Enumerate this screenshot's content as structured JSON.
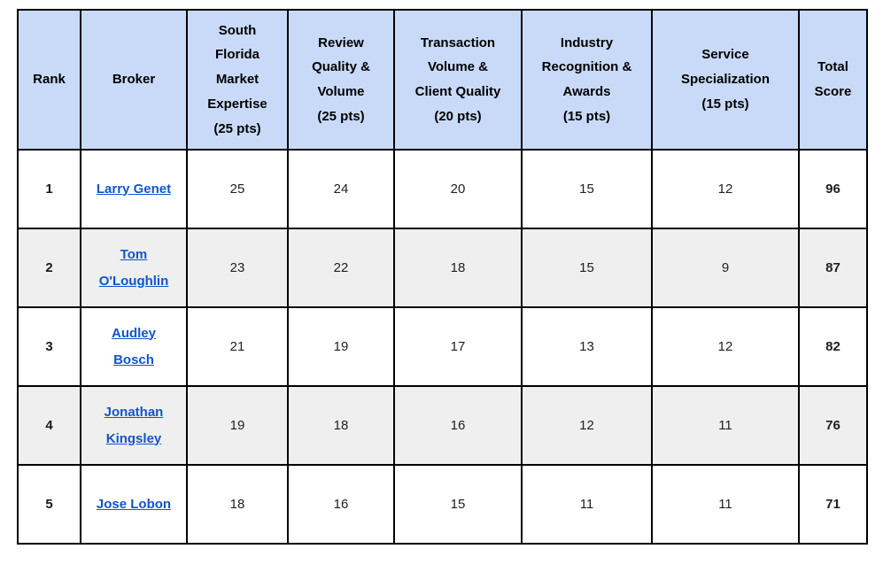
{
  "colors": {
    "header_background": "#c9daf8",
    "alt_row_background": "#efefef",
    "border": "#000000",
    "link": "#1155cc",
    "text": "#202124"
  },
  "table": {
    "columns": [
      {
        "key": "rank",
        "label": "Rank",
        "lines": [
          "Rank"
        ]
      },
      {
        "key": "broker",
        "label": "Broker",
        "lines": [
          "Broker"
        ]
      },
      {
        "key": "sf-market-expertise",
        "label": "South Florida Market Expertise (25 pts)",
        "lines": [
          "South",
          "Florida",
          "Market",
          "Expertise",
          "(25 pts)"
        ]
      },
      {
        "key": "review-quality-volume",
        "label": "Review Quality & Volume (25 pts)",
        "lines": [
          "Review",
          "Quality &",
          "Volume",
          "(25 pts)"
        ]
      },
      {
        "key": "transaction-volume-client-quality",
        "label": "Transaction Volume & Client Quality (20 pts)",
        "lines": [
          "Transaction",
          "Volume &",
          "Client Quality",
          "(20 pts)"
        ]
      },
      {
        "key": "industry-recognition-awards",
        "label": "Industry Recognition & Awards (15 pts)",
        "lines": [
          "Industry",
          "Recognition &",
          "Awards",
          "(15 pts)"
        ]
      },
      {
        "key": "service-specialization",
        "label": "Service Specialization (15 pts)",
        "lines": [
          "Service",
          "Specialization",
          "(15 pts)"
        ]
      },
      {
        "key": "total-score",
        "label": "Total Score",
        "lines": [
          "Total",
          "Score"
        ]
      }
    ],
    "rows": [
      {
        "rank": "1",
        "broker": "Larry Genet",
        "scores": [
          "25",
          "24",
          "20",
          "15",
          "12"
        ],
        "total": "96"
      },
      {
        "rank": "2",
        "broker": "Tom O'Loughlin",
        "scores": [
          "23",
          "22",
          "18",
          "15",
          "9"
        ],
        "total": "87"
      },
      {
        "rank": "3",
        "broker": "Audley Bosch",
        "scores": [
          "21",
          "19",
          "17",
          "13",
          "12"
        ],
        "total": "82"
      },
      {
        "rank": "4",
        "broker": "Jonathan Kingsley",
        "scores": [
          "19",
          "18",
          "16",
          "12",
          "11"
        ],
        "total": "76"
      },
      {
        "rank": "5",
        "broker": "Jose Lobon",
        "scores": [
          "18",
          "16",
          "15",
          "11",
          "11"
        ],
        "total": "71"
      }
    ]
  }
}
